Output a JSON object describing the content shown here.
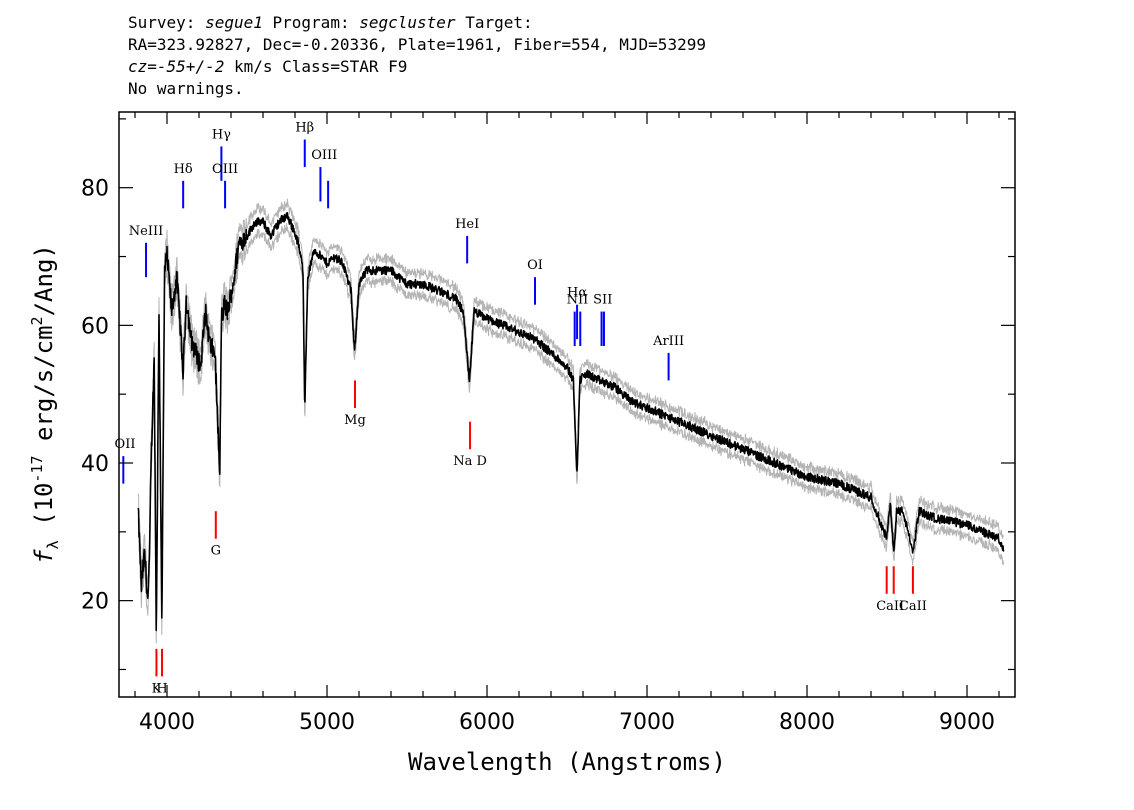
{
  "header": {
    "survey_label": "Survey:",
    "survey": "segue1",
    "program_label": "Program:",
    "program": "segcluster",
    "target_label": "Target:",
    "line2": "RA=323.92827, Dec=-0.20336, Plate=1961, Fiber=554, MJD=53299",
    "cz_label": "cz=",
    "cz": "-55+/-2",
    "cz_unit": "km/s",
    "class_text": "Class=STAR F9",
    "warnings": "No warnings."
  },
  "chart_data": {
    "type": "line",
    "xlabel": "Wavelength (Angstroms)",
    "ylabel": "f_λ (10^-17 erg/s/cm^2/Ang)",
    "xlim": [
      3700,
      9300
    ],
    "ylim": [
      6,
      91
    ],
    "x_ticks": [
      4000,
      5000,
      6000,
      7000,
      8000,
      9000
    ],
    "y_ticks": [
      20,
      40,
      60,
      80
    ],
    "series": [
      {
        "x": [
          3820,
          3840,
          3860,
          3880,
          3890,
          3900,
          3920,
          3933,
          3950,
          3968,
          3985,
          4000,
          4030,
          4060,
          4080,
          4101,
          4120,
          4150,
          4180,
          4210,
          4240,
          4270,
          4300,
          4330,
          4340,
          4360,
          4380,
          4420,
          4450,
          4500,
          4550,
          4600,
          4650,
          4700,
          4750,
          4790,
          4820,
          4850,
          4861,
          4880,
          4920,
          4960,
          5000,
          5050,
          5100,
          5150,
          5172,
          5200,
          5250,
          5300,
          5400,
          5500,
          5600,
          5700,
          5800,
          5850,
          5890,
          5920,
          6000,
          6100,
          6200,
          6300,
          6400,
          6500,
          6540,
          6563,
          6580,
          6620,
          6700,
          6800,
          6900,
          7000,
          7100,
          7200,
          7400,
          7600,
          7800,
          8000,
          8200,
          8400,
          8498,
          8520,
          8542,
          8560,
          8600,
          8662,
          8700,
          8800,
          9000,
          9100,
          9200,
          9230
        ],
        "y": [
          33,
          22,
          27,
          20,
          25,
          40,
          55,
          15,
          62,
          17,
          68,
          70,
          62,
          67,
          61,
          53,
          64,
          58,
          56,
          54,
          62,
          57,
          56,
          38,
          61,
          63,
          62,
          67,
          72,
          73,
          75,
          75,
          73,
          75,
          76,
          74,
          72,
          68,
          48,
          67,
          71,
          70,
          69,
          70,
          69,
          65,
          56,
          66,
          68,
          68,
          68,
          66,
          66,
          65,
          64,
          62,
          52,
          62,
          61,
          60,
          59,
          58,
          56,
          54,
          52,
          38,
          52,
          53,
          52,
          51,
          49,
          48,
          47,
          46,
          44,
          42,
          40,
          38,
          37,
          35,
          29,
          34,
          27,
          33,
          33,
          27,
          33,
          32,
          31,
          30,
          29,
          27
        ]
      },
      {
        "name": "error",
        "x": [
          3820,
          4000,
          4500,
          5000,
          6000,
          7000,
          8000,
          9000,
          9230
        ],
        "y": [
          1.8,
          1.8,
          1.5,
          1.3,
          1.2,
          1.1,
          1.1,
          1.2,
          1.4
        ]
      }
    ],
    "emission_lines": [
      {
        "label": "OII",
        "x": 3727,
        "y_bottom": 37,
        "y_top": 41
      },
      {
        "label": "NeIII",
        "x": 3869,
        "y_bottom": 67,
        "y_top": 72
      },
      {
        "label": "Hδ",
        "x": 4101,
        "y_bottom": 77,
        "y_top": 81
      },
      {
        "label": "Hγ",
        "x": 4340,
        "y_bottom": 81,
        "y_top": 86
      },
      {
        "label": "OIII",
        "x": 4363,
        "y_bottom": 77,
        "y_top": 81
      },
      {
        "label": "Hβ",
        "x": 4861,
        "y_bottom": 83,
        "y_top": 87
      },
      {
        "label": "OIII",
        "x": 4959,
        "y_bottom": 78,
        "y_top": 83
      },
      {
        "label": "OIII",
        "x": 5007,
        "y_bottom": 77,
        "y_top": 81
      },
      {
        "label": "HeI",
        "x": 5876,
        "y_bottom": 69,
        "y_top": 73
      },
      {
        "label": "OI",
        "x": 6300,
        "y_bottom": 63,
        "y_top": 67
      },
      {
        "label": "NII",
        "x": 6548,
        "y_bottom": 57,
        "y_top": 62
      },
      {
        "label": "Hα",
        "x": 6563,
        "y_bottom": 58,
        "y_top": 63
      },
      {
        "label": "NII",
        "x": 6583,
        "y_bottom": 57,
        "y_top": 62
      },
      {
        "label": "SII",
        "x": 6716,
        "y_bottom": 57,
        "y_top": 62
      },
      {
        "label": "SII",
        "x": 6731,
        "y_bottom": 57,
        "y_top": 62
      },
      {
        "label": "ArIII",
        "x": 7135,
        "y_bottom": 52,
        "y_top": 56
      }
    ],
    "absorption_lines": [
      {
        "label": "K",
        "x": 3934,
        "y_bottom": 9,
        "y_top": 13
      },
      {
        "label": "H",
        "x": 3969,
        "y_bottom": 9,
        "y_top": 13
      },
      {
        "label": "G",
        "x": 4305,
        "y_bottom": 29,
        "y_top": 33
      },
      {
        "label": "Mg",
        "x": 5175,
        "y_bottom": 48,
        "y_top": 52
      },
      {
        "label": "Na D",
        "x": 5894,
        "y_bottom": 42,
        "y_top": 46
      },
      {
        "label": "CaII",
        "x": 8498,
        "y_bottom": 21,
        "y_top": 25
      },
      {
        "label": "CaII",
        "x": 8542,
        "y_bottom": 21,
        "y_top": 25
      },
      {
        "label": "CaII",
        "x": 8662,
        "y_bottom": 21,
        "y_top": 25
      }
    ],
    "colors": {
      "flux": "#000000",
      "error": "#b4b4b4",
      "emission": "#0000ff",
      "absorption": "#ff0000"
    }
  }
}
